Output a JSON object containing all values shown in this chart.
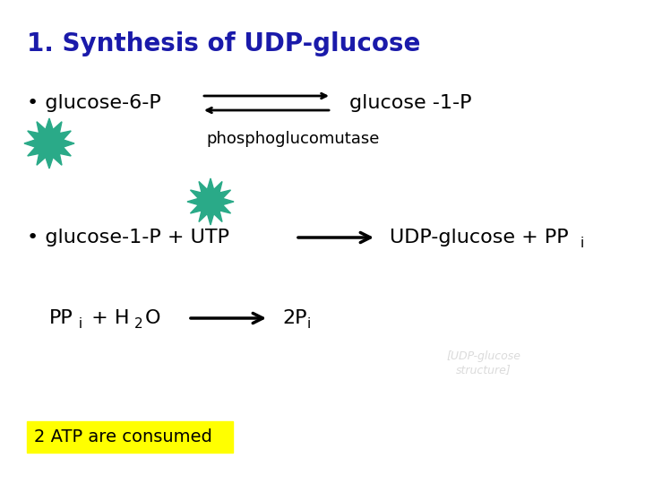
{
  "title": "1. Synthesis of UDP-glucose",
  "title_color": "#1a1aaa",
  "title_fontsize": 20,
  "title_bold": true,
  "bg_color": "#ffffff",
  "star_color": "#2aaa88",
  "text_color": "#000000",
  "line1_left": "• glucose-6-P",
  "line1_right": "glucose -1-P",
  "line1_enzyme": "phosphoglucomutase",
  "line2_left": "• glucose-1-P + UTP",
  "line2_right": "UDP-glucose + PP",
  "line2_right_sub": "i",
  "line3_left_main": "PP",
  "line3_left_sub1": "i",
  "line3_left_rest": " + H",
  "line3_left_sub2": "2",
  "line3_left_end": "O",
  "line3_right_main": "2P",
  "line3_right_sub": "i",
  "atp_label": "2 ATP are consumed",
  "atp_bg": "#ffff00",
  "atp_text_color": "#000000"
}
